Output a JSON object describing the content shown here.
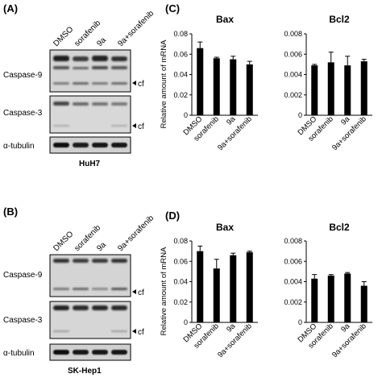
{
  "panels": {
    "A": {
      "label": "(A)",
      "lanes": [
        "DMSO",
        "sorafenib",
        "9a",
        "9a+sorafenib"
      ],
      "rows": [
        {
          "name": "Caspase-9",
          "cf": "cf"
        },
        {
          "name": "Caspase-3",
          "cf": "cf"
        },
        {
          "name": "α-tubulin",
          "cf": ""
        }
      ],
      "cell_line": "HuH7"
    },
    "B": {
      "label": "(B)",
      "lanes": [
        "DMSO",
        "sorafenib",
        "9a",
        "9a+sorafenib"
      ],
      "rows": [
        {
          "name": "Caspase-9",
          "cf": "cf"
        },
        {
          "name": "Caspase-3",
          "cf": "cf"
        },
        {
          "name": "α-tubulin",
          "cf": ""
        }
      ],
      "cell_line": "SK-Hep1"
    },
    "C": {
      "label": "(C)"
    },
    "D": {
      "label": "(D)"
    }
  },
  "chart_data": [
    {
      "type": "bar",
      "panel": "C",
      "title": "Bax",
      "ylabel": "Relative amount of mRNA",
      "categories": [
        "DMSO",
        "sorafenib",
        "9a",
        "9a+sorafenib"
      ],
      "values": [
        0.066,
        0.056,
        0.055,
        0.05
      ],
      "errors": [
        0.006,
        0.001,
        0.003,
        0.003
      ],
      "ylim": [
        0,
        0.08
      ],
      "yticks": [
        "0",
        "0.02",
        "0.04",
        "0.06",
        "0.08"
      ]
    },
    {
      "type": "bar",
      "panel": "C",
      "title": "Bcl2",
      "ylabel": "",
      "categories": [
        "DMSO",
        "sorafenib",
        "9a",
        "9a+sorafenib"
      ],
      "values": [
        0.0049,
        0.0052,
        0.0049,
        0.0053
      ],
      "errors": [
        0.0001,
        0.001,
        0.0009,
        0.0002
      ],
      "ylim": [
        0,
        0.008
      ],
      "yticks": [
        "0",
        "0.002",
        "0.004",
        "0.006",
        "0.008"
      ]
    },
    {
      "type": "bar",
      "panel": "D",
      "title": "Bax",
      "ylabel": "Relative amount of mRNA",
      "categories": [
        "DMSO",
        "sorafenib",
        "9a",
        "9a+sorafenib"
      ],
      "values": [
        0.07,
        0.053,
        0.066,
        0.069
      ],
      "errors": [
        0.005,
        0.009,
        0.002,
        0.001
      ],
      "ylim": [
        0,
        0.08
      ],
      "yticks": [
        "0",
        "0.02",
        "0.04",
        "0.06",
        "0.08"
      ]
    },
    {
      "type": "bar",
      "panel": "D",
      "title": "Bcl2",
      "ylabel": "",
      "categories": [
        "DMSO",
        "sorafenib",
        "9a",
        "9a+sorafenib"
      ],
      "values": [
        0.0043,
        0.0046,
        0.0048,
        0.0036
      ],
      "errors": [
        0.0004,
        0.0001,
        0.0001,
        0.0004
      ],
      "ylim": [
        0,
        0.008
      ],
      "yticks": [
        "0",
        "0.002",
        "0.004",
        "0.006",
        "0.008"
      ]
    }
  ]
}
